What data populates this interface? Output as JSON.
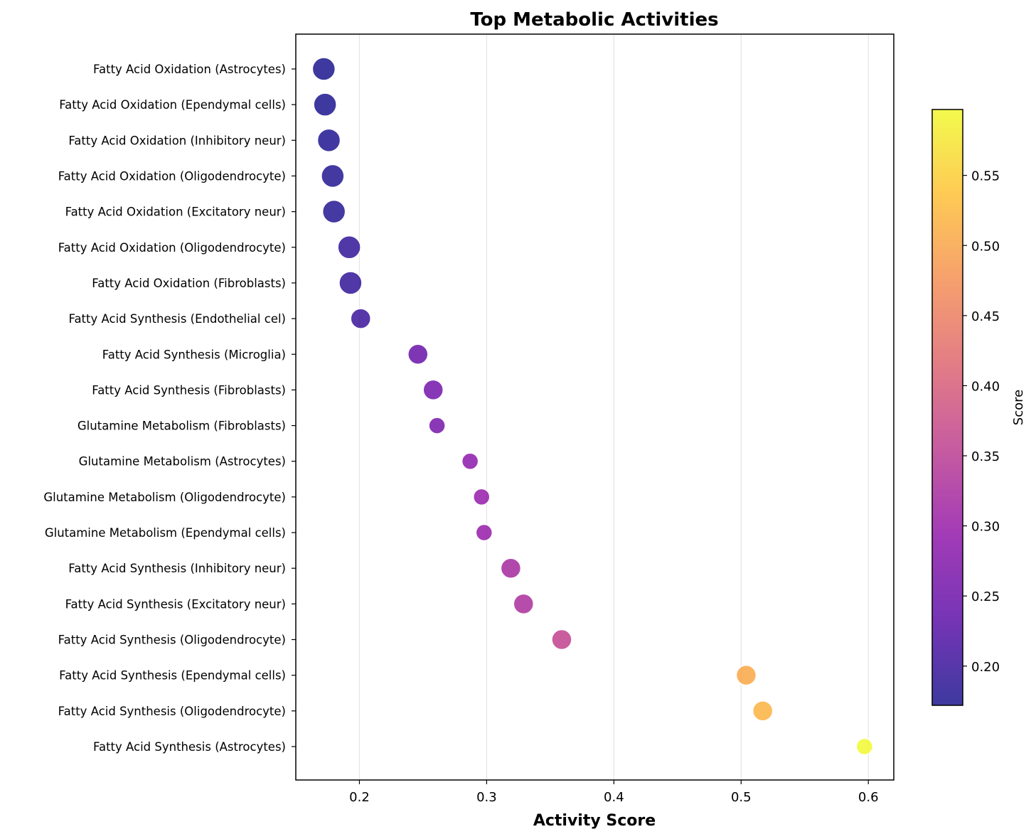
{
  "chart_data": {
    "type": "scatter",
    "title": "Top Metabolic Activities",
    "xlabel": "Activity Score",
    "ylabel": "",
    "xlim": [
      0.15,
      0.62
    ],
    "xticks": [
      "0.2",
      "0.3",
      "0.4",
      "0.5",
      "0.6"
    ],
    "grid": "vertical",
    "colormap": "plasma",
    "colorbar": {
      "label": "Score",
      "range": [
        0.172,
        0.597
      ],
      "ticks": [
        "0.20",
        "0.25",
        "0.30",
        "0.35",
        "0.40",
        "0.45",
        "0.50",
        "0.55"
      ]
    },
    "categories": [
      "Fatty Acid Oxidation (Astrocytes)",
      "Fatty Acid Oxidation (Ependymal cells)",
      "Fatty Acid Oxidation (Inhibitory neur)",
      "Fatty Acid Oxidation (Oligodendrocyte)",
      "Fatty Acid Oxidation (Excitatory neur)",
      "Fatty Acid Oxidation (Oligodendrocyte)",
      "Fatty Acid Oxidation (Fibroblasts)",
      "Fatty Acid Synthesis (Endothelial cel)",
      "Fatty Acid Synthesis (Microglia)",
      "Fatty Acid Synthesis (Fibroblasts)",
      "Glutamine Metabolism (Fibroblasts)",
      "Glutamine Metabolism (Astrocytes)",
      "Glutamine Metabolism (Oligodendrocyte)",
      "Glutamine Metabolism (Ependymal cells)",
      "Fatty Acid Synthesis (Inhibitory neur)",
      "Fatty Acid Synthesis (Excitatory neur)",
      "Fatty Acid Synthesis (Oligodendrocyte)",
      "Fatty Acid Synthesis (Ependymal cells)",
      "Fatty Acid Synthesis (Oligodendrocyte)",
      "Fatty Acid Synthesis (Astrocytes)"
    ],
    "values": [
      0.172,
      0.173,
      0.176,
      0.179,
      0.18,
      0.192,
      0.193,
      0.201,
      0.246,
      0.258,
      0.261,
      0.287,
      0.296,
      0.298,
      0.319,
      0.329,
      0.359,
      0.504,
      0.517,
      0.597
    ],
    "marker_size_rank": [
      3,
      3,
      3,
      3,
      3,
      3,
      3,
      2,
      2,
      2,
      1,
      1,
      1,
      1,
      2,
      2,
      2,
      2,
      2,
      1
    ]
  }
}
